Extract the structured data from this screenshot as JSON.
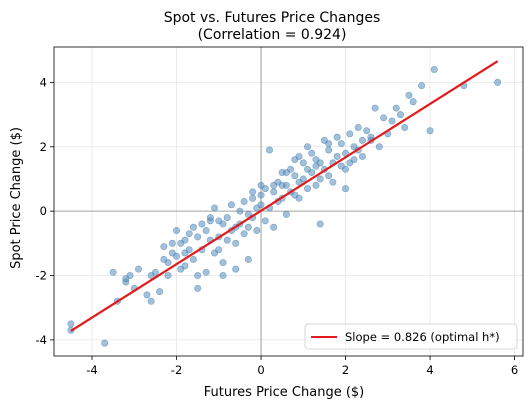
{
  "chart_data": {
    "type": "scatter",
    "title_line1": "Spot vs. Futures Price Changes",
    "title_line2": "(Correlation = 0.924)",
    "xlabel": "Futures Price Change ($)",
    "ylabel": "Spot Price Change ($)",
    "xlim": [
      -4.9,
      6.2
    ],
    "ylim": [
      -4.5,
      5.1
    ],
    "xticks": [
      -4,
      -2,
      0,
      2,
      4,
      6
    ],
    "yticks": [
      -4,
      -2,
      0,
      2,
      4
    ],
    "xtick_labels": [
      "-4",
      "-2",
      "0",
      "2",
      "4",
      "6"
    ],
    "ytick_labels": [
      "-4",
      "-2",
      "0",
      "2",
      "4"
    ],
    "grid": true,
    "zero_lines": true,
    "legend": {
      "placement": "lower-right",
      "label": "Slope = 0.826 (optimal h*)"
    },
    "colors": {
      "points": "#4682b4",
      "fit_line": "#e31a1c",
      "zero_line": "#888888",
      "grid": "#e5e5e5"
    },
    "fit": {
      "slope": 0.826,
      "x_range": [
        -4.5,
        5.6
      ],
      "y_range": [
        -3.72,
        4.66
      ]
    },
    "points": {
      "x": [
        -4.5,
        -4.5,
        -3.7,
        -3.5,
        -3.4,
        -3.2,
        -3.2,
        -3.1,
        -3.0,
        -2.9,
        -2.7,
        -2.6,
        -2.5,
        -2.4,
        -2.3,
        -2.3,
        -2.2,
        -2.2,
        -2.1,
        -2.1,
        -2.0,
        -2.0,
        -1.9,
        -1.9,
        -1.8,
        -1.8,
        -1.7,
        -1.7,
        -1.6,
        -1.6,
        -1.5,
        -1.5,
        -1.4,
        -1.4,
        -1.3,
        -1.3,
        -1.2,
        -1.2,
        -1.1,
        -1.1,
        -1.0,
        -1.0,
        -0.9,
        -0.9,
        -0.8,
        -0.8,
        -0.7,
        -0.7,
        -0.6,
        -0.6,
        -0.5,
        -0.5,
        -0.4,
        -0.4,
        -0.3,
        -0.3,
        -0.2,
        -0.2,
        -0.1,
        -0.1,
        0.0,
        0.0,
        0.1,
        0.1,
        0.2,
        0.2,
        0.3,
        0.3,
        0.4,
        0.4,
        0.5,
        0.5,
        0.6,
        0.6,
        0.7,
        0.7,
        0.8,
        0.8,
        0.9,
        0.9,
        1.0,
        1.0,
        1.1,
        1.1,
        1.2,
        1.2,
        1.3,
        1.3,
        1.4,
        1.4,
        1.5,
        1.5,
        1.6,
        1.6,
        1.7,
        1.7,
        1.8,
        1.8,
        1.9,
        1.9,
        2.0,
        2.0,
        2.1,
        2.1,
        2.2,
        2.2,
        2.3,
        2.3,
        2.4,
        2.4,
        2.5,
        2.6,
        2.7,
        2.8,
        2.9,
        3.0,
        3.1,
        3.2,
        3.3,
        3.4,
        3.5,
        3.6,
        3.8,
        4.0,
        4.1,
        4.8,
        5.6,
        -1.5,
        -0.9,
        -0.3,
        0.3,
        0.8,
        1.4,
        -2.6,
        -1.0,
        0.5,
        1.6,
        2.6,
        -0.6,
        0.9,
        -1.8,
        1.1,
        -0.2,
        0.6,
        2.0,
        -1.2,
        0.0,
        1.3
      ],
      "y": [
        -3.5,
        -3.7,
        -4.1,
        -1.9,
        -2.8,
        -2.2,
        -2.1,
        -2.0,
        -2.4,
        -1.8,
        -2.6,
        -2.8,
        -1.9,
        -2.5,
        -1.5,
        -1.1,
        -1.6,
        -2.0,
        -1.3,
        -1.0,
        -0.6,
        -1.4,
        -1.8,
        -1.0,
        -0.9,
        -1.7,
        -1.2,
        -0.7,
        -1.5,
        -0.5,
        -0.8,
        -2.0,
        -0.4,
        -1.2,
        -0.6,
        -1.9,
        -0.2,
        -0.9,
        -1.3,
        0.1,
        -0.3,
        -0.8,
        -1.6,
        -0.4,
        -0.2,
        -0.9,
        0.2,
        -0.6,
        -1.8,
        -0.5,
        0.0,
        -0.4,
        0.3,
        -0.7,
        -0.1,
        -0.5,
        0.4,
        -0.2,
        0.1,
        -0.6,
        0.5,
        0.2,
        0.7,
        -0.3,
        1.9,
        0.1,
        0.6,
        -0.5,
        0.9,
        0.3,
        1.2,
        0.4,
        0.8,
        -0.1,
        1.3,
        0.6,
        0.5,
        1.1,
        1.7,
        0.9,
        1.0,
        1.5,
        0.7,
        1.3,
        1.2,
        1.8,
        1.6,
        0.8,
        1.0,
        1.5,
        2.2,
        1.3,
        1.9,
        1.1,
        1.5,
        0.9,
        1.7,
        2.3,
        1.4,
        2.1,
        0.7,
        1.8,
        2.4,
        1.5,
        1.6,
        2.0,
        2.6,
        1.9,
        2.2,
        1.7,
        2.5,
        2.3,
        3.2,
        2.0,
        2.9,
        2.4,
        2.8,
        3.2,
        3.0,
        2.6,
        3.6,
        3.4,
        3.9,
        2.5,
        4.4,
        3.9,
        4.0,
        -2.4,
        -2.0,
        -1.5,
        0.8,
        1.6,
        -0.4,
        -2.0,
        -1.2,
        0.8,
        2.1,
        2.2,
        -1.0,
        0.4,
        -1.3,
        2.0,
        0.6,
        1.2,
        1.3,
        -0.3,
        0.8,
        1.4
      ]
    }
  }
}
